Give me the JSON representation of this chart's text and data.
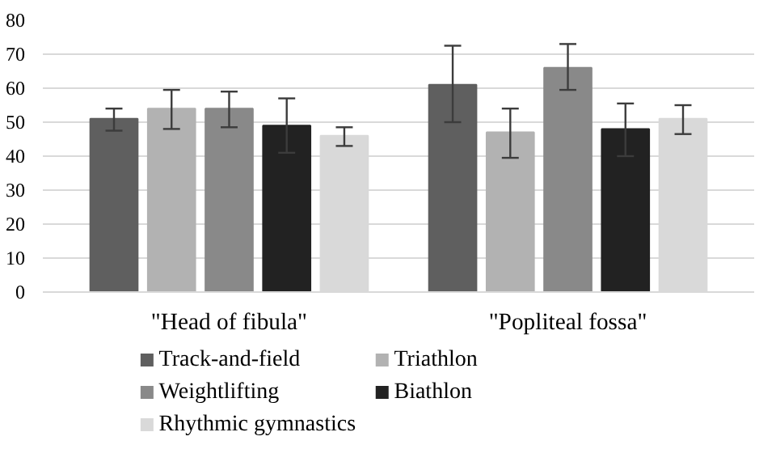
{
  "chart_data": {
    "type": "bar",
    "categories": [
      "\"Head of fibula\"",
      "\"Popliteal fossa\""
    ],
    "series": [
      {
        "name": "Track-and-field",
        "color": "#5f5f5f",
        "values": [
          51,
          61
        ],
        "errors": [
          [
            47.5,
            54
          ],
          [
            50,
            72.5
          ]
        ]
      },
      {
        "name": "Triathlon",
        "color": "#b2b2b2",
        "values": [
          54,
          47
        ],
        "errors": [
          [
            48,
            59.5
          ],
          [
            39.5,
            54
          ]
        ]
      },
      {
        "name": "Weightlifting",
        "color": "#898989",
        "values": [
          54,
          66
        ],
        "errors": [
          [
            48.5,
            59
          ],
          [
            59.5,
            73
          ]
        ]
      },
      {
        "name": "Biathlon",
        "color": "#222222",
        "values": [
          49,
          48
        ],
        "errors": [
          [
            41,
            57
          ],
          [
            40,
            55.5
          ]
        ]
      },
      {
        "name": "Rhythmic gymnastics",
        "color": "#d9d9d9",
        "values": [
          46,
          51
        ],
        "errors": [
          [
            43,
            48.5
          ],
          [
            46.5,
            55
          ]
        ]
      }
    ],
    "ylim": [
      0,
      80
    ],
    "yticks": [
      0,
      10,
      20,
      30,
      40,
      50,
      60,
      70,
      80
    ],
    "grid": "y",
    "legend": "bottom"
  }
}
